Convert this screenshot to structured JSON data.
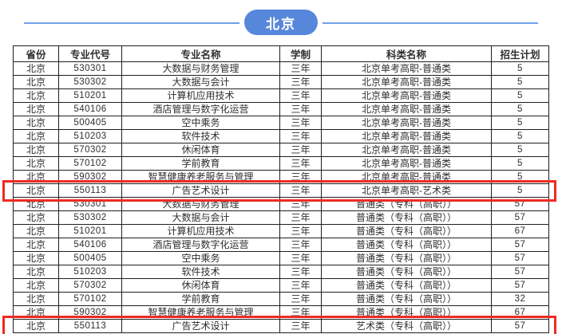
{
  "header": {
    "badge_label": "北京",
    "badge_color": "#5787da",
    "line_color": "#72a0e8"
  },
  "highlight_color": "#ee2b23",
  "table": {
    "columns": [
      "省份",
      "专业代号",
      "专业名称",
      "学制",
      "科类名称",
      "招生计划"
    ],
    "rows": [
      {
        "province": "北京",
        "code": "530301",
        "major": "大数据与财务管理",
        "duration": "三年",
        "category": "北京单考高职-普通类",
        "plan": "5",
        "highlighted": false
      },
      {
        "province": "北京",
        "code": "530302",
        "major": "大数据与会计",
        "duration": "三年",
        "category": "北京单考高职-普通类",
        "plan": "5",
        "highlighted": false
      },
      {
        "province": "北京",
        "code": "510201",
        "major": "计算机应用技术",
        "duration": "三年",
        "category": "北京单考高职-普通类",
        "plan": "5",
        "highlighted": false
      },
      {
        "province": "北京",
        "code": "540106",
        "major": "酒店管理与数字化运营",
        "duration": "三年",
        "category": "北京单考高职-普通类",
        "plan": "5",
        "highlighted": false
      },
      {
        "province": "北京",
        "code": "500405",
        "major": "空中乘务",
        "duration": "三年",
        "category": "北京单考高职-普通类",
        "plan": "5",
        "highlighted": false
      },
      {
        "province": "北京",
        "code": "510203",
        "major": "软件技术",
        "duration": "三年",
        "category": "北京单考高职-普通类",
        "plan": "5",
        "highlighted": false
      },
      {
        "province": "北京",
        "code": "570302",
        "major": "休闲体育",
        "duration": "三年",
        "category": "北京单考高职-普通类",
        "plan": "5",
        "highlighted": false
      },
      {
        "province": "北京",
        "code": "570102",
        "major": "学前教育",
        "duration": "三年",
        "category": "北京单考高职-普通类",
        "plan": "5",
        "highlighted": false
      },
      {
        "province": "北京",
        "code": "590302",
        "major": "智慧健康养老服务与管理",
        "duration": "三年",
        "category": "北京单考高职-普通类",
        "plan": "5",
        "highlighted": false
      },
      {
        "province": "北京",
        "code": "550113",
        "major": "广告艺术设计",
        "duration": "三年",
        "category": "北京单考高职-艺术类",
        "plan": "5",
        "highlighted": true
      },
      {
        "province": "北京",
        "code": "530301",
        "major": "大数据与财务管理",
        "duration": "三年",
        "category": "普通类（专科（高职））",
        "plan": "57",
        "highlighted": false
      },
      {
        "province": "北京",
        "code": "530302",
        "major": "大数据与会计",
        "duration": "三年",
        "category": "普通类（专科（高职））",
        "plan": "57",
        "highlighted": false
      },
      {
        "province": "北京",
        "code": "510201",
        "major": "计算机应用技术",
        "duration": "三年",
        "category": "普通类（专科（高职））",
        "plan": "67",
        "highlighted": false
      },
      {
        "province": "北京",
        "code": "540106",
        "major": "酒店管理与数字化运营",
        "duration": "三年",
        "category": "普通类（专科（高职））",
        "plan": "57",
        "highlighted": false
      },
      {
        "province": "北京",
        "code": "500405",
        "major": "空中乘务",
        "duration": "三年",
        "category": "普通类（专科（高职））",
        "plan": "57",
        "highlighted": false
      },
      {
        "province": "北京",
        "code": "510203",
        "major": "软件技术",
        "duration": "三年",
        "category": "普通类（专科（高职））",
        "plan": "57",
        "highlighted": false
      },
      {
        "province": "北京",
        "code": "570302",
        "major": "休闲体育",
        "duration": "三年",
        "category": "普通类（专科（高职））",
        "plan": "57",
        "highlighted": false
      },
      {
        "province": "北京",
        "code": "570102",
        "major": "学前教育",
        "duration": "三年",
        "category": "普通类（专科（高职））",
        "plan": "32",
        "highlighted": false
      },
      {
        "province": "北京",
        "code": "590302",
        "major": "智慧健康养老服务与管理",
        "duration": "三年",
        "category": "普通类（专科（高职））",
        "plan": "67",
        "highlighted": false
      },
      {
        "province": "北京",
        "code": "550113",
        "major": "广告艺术设计",
        "duration": "三年",
        "category": "艺术类（专科（高职））",
        "plan": "57",
        "highlighted": true
      }
    ]
  }
}
